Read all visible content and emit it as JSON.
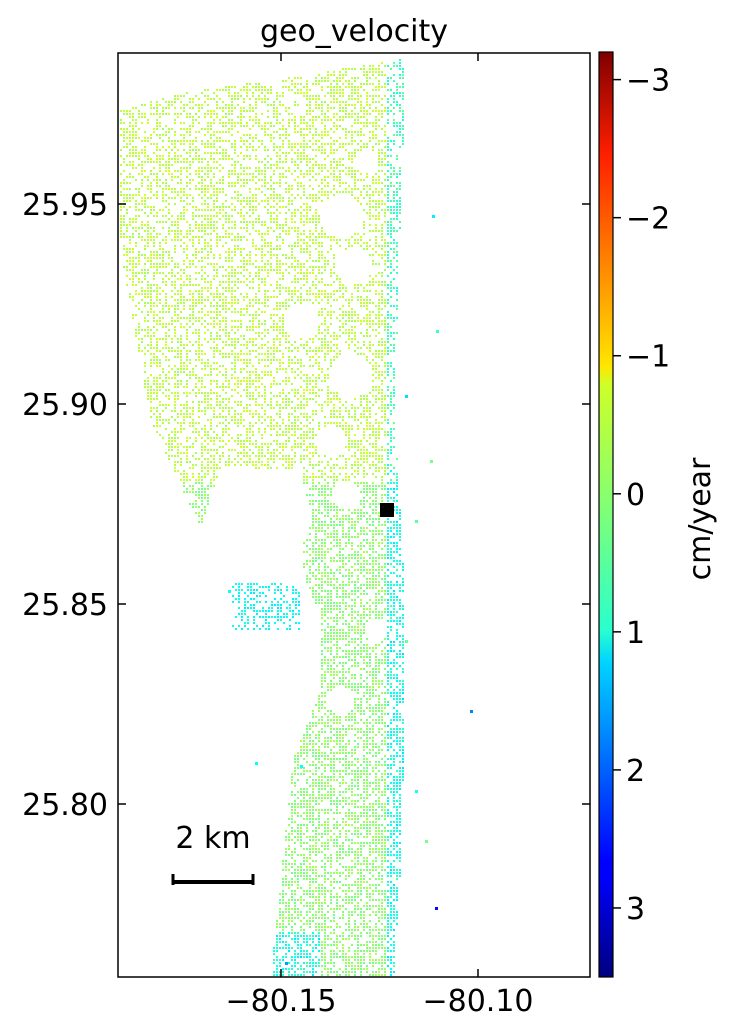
{
  "figure": {
    "title": "geo_velocity",
    "x_ticks": [
      "−80.15",
      "−80.10"
    ],
    "y_ticks": [
      "25.95",
      "25.90",
      "25.85",
      "25.80"
    ],
    "scalebar_label": "2 km",
    "colorbar": {
      "label": "cm/year",
      "ticks": [
        "3",
        "2",
        "1",
        "0",
        "−1",
        "−2",
        "−3"
      ],
      "colormap": "jet",
      "range": [
        -3.5,
        3.2
      ]
    },
    "reference_marker_color": "#000000"
  },
  "chart_data": {
    "type": "heatmap",
    "title": "geo_velocity",
    "xlabel": "",
    "ylabel": "",
    "xlim": [
      -80.191,
      -80.073
    ],
    "ylim": [
      25.757,
      25.988
    ],
    "x_ticks": [
      -80.15,
      -80.1
    ],
    "y_ticks": [
      25.8,
      25.85,
      25.9,
      25.95
    ],
    "colorbar": {
      "label": "cm/year",
      "min": -3.5,
      "max": 3.2,
      "ticks": [
        -3,
        -2,
        -1,
        0,
        1,
        2,
        3
      ],
      "colormap": "jet"
    },
    "reference_point": {
      "lon": -80.123,
      "lat": 25.874
    },
    "scalebar": {
      "label": "2 km"
    },
    "grid": false
  }
}
